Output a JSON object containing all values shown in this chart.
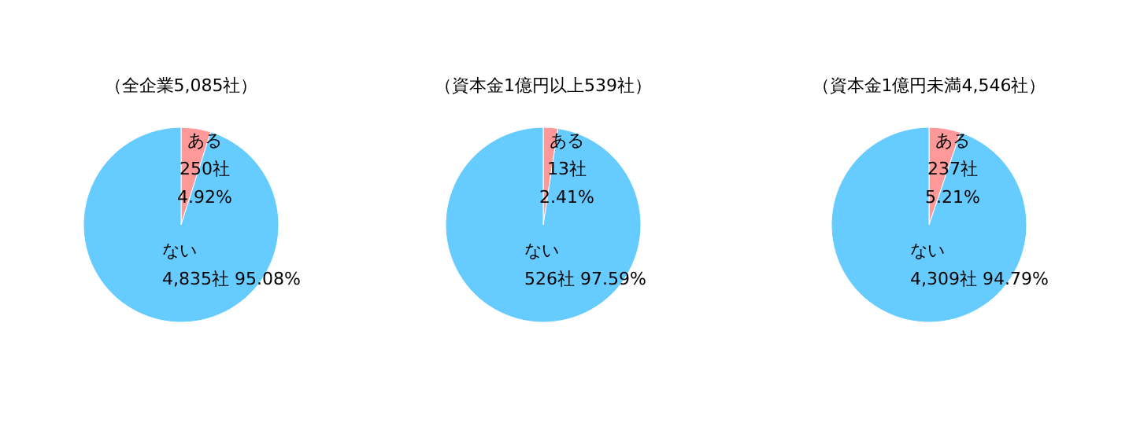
{
  "chart_data": [
    {
      "type": "pie",
      "title": "（全企業5,085社）",
      "categories": [
        "ある",
        "ない"
      ],
      "values": [
        250,
        4835
      ],
      "colors": [
        "#ff9999",
        "#66ccff"
      ],
      "value_labels": [
        "250社\n4.92%",
        "4,835社 95.08%"
      ]
    },
    {
      "type": "pie",
      "title": "（資本金1億円以上539社）",
      "categories": [
        "ある",
        "ない"
      ],
      "values": [
        13,
        526
      ],
      "colors": [
        "#ff9999",
        "#66ccff"
      ],
      "value_labels": [
        "13社\n2.41%",
        "526社 97.59%"
      ]
    },
    {
      "type": "pie",
      "title": "（資本金1億円未満4,546社）",
      "categories": [
        "ある",
        "ない"
      ],
      "values": [
        237,
        4309
      ],
      "colors": [
        "#ff9999",
        "#66ccff"
      ],
      "value_labels": [
        "237社\n5.21%",
        "4,309社 94.79%"
      ]
    }
  ]
}
